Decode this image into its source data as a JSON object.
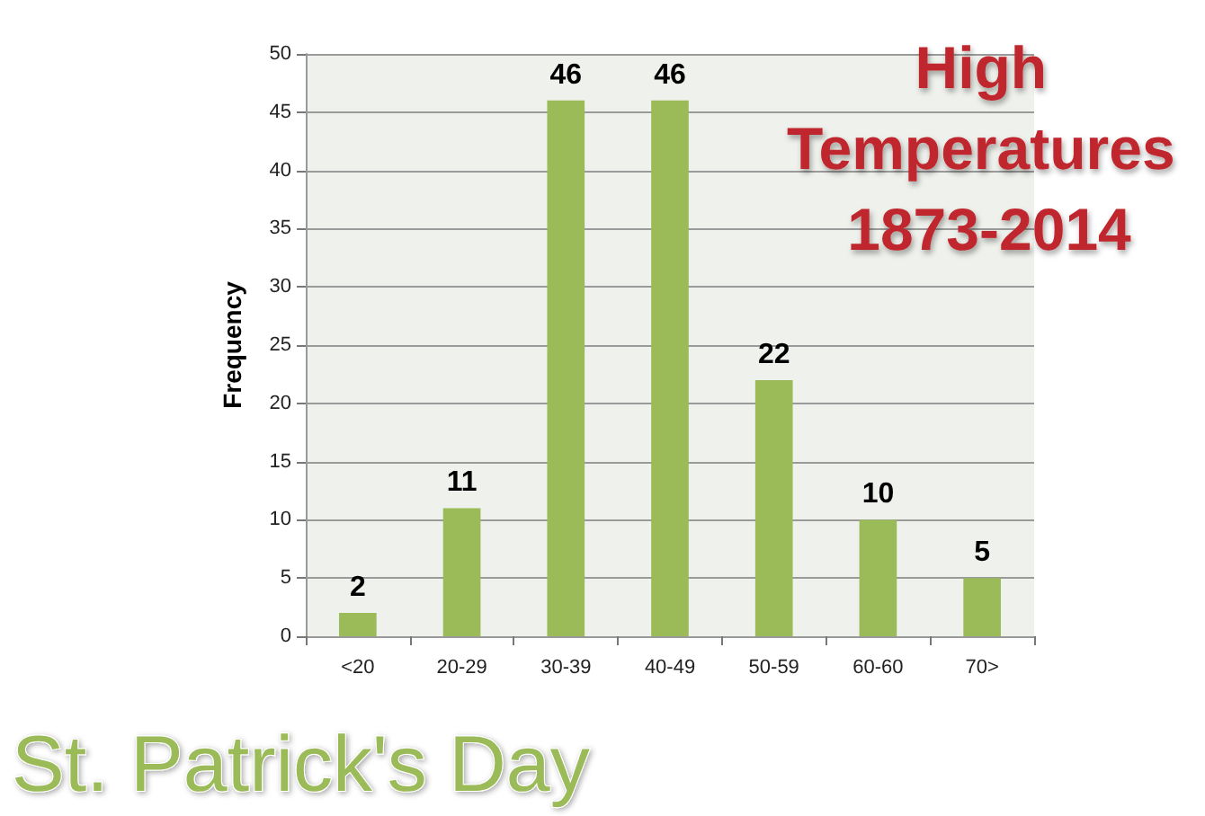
{
  "chart_data": {
    "type": "bar",
    "title": "High Temperatures 1873-2014",
    "ylabel": "Frequency",
    "categories": [
      "<20",
      "20-29",
      "30-39",
      "40-49",
      "50-59",
      "60-60",
      "70>"
    ],
    "values": [
      2,
      11,
      46,
      46,
      22,
      10,
      5
    ],
    "color": "#9bbb59",
    "ylim": [
      0,
      50
    ],
    "yticks": [
      0,
      5,
      10,
      15,
      20,
      25,
      30,
      35,
      40,
      45,
      50
    ],
    "grid": "y",
    "data_labels": true,
    "annotations": [
      "St. Patrick's Day"
    ]
  }
}
